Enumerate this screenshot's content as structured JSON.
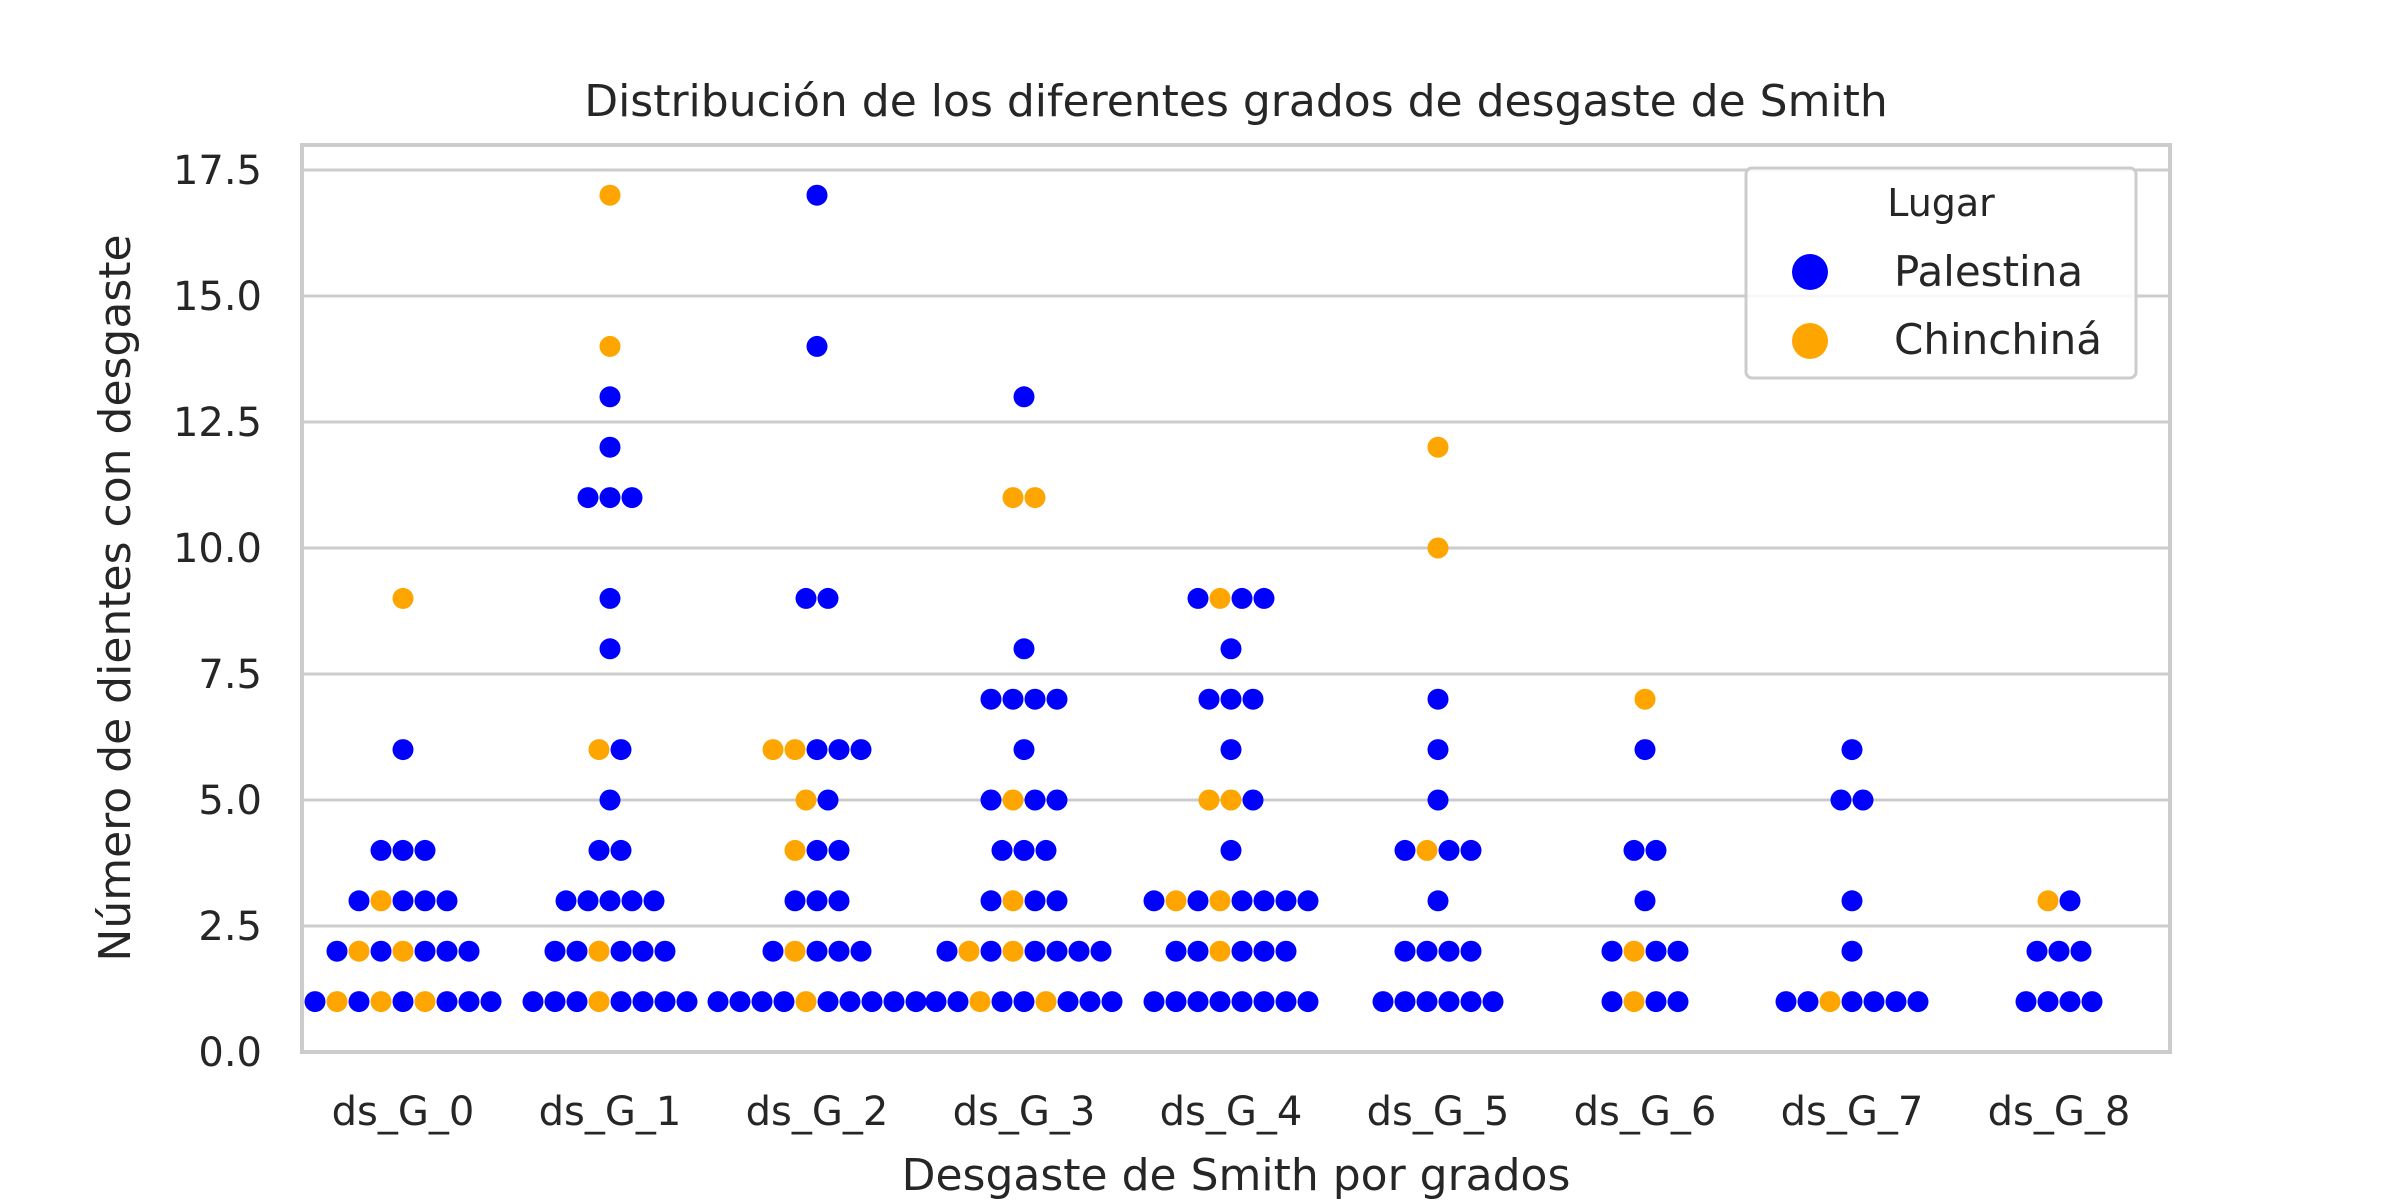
{
  "chart_data": {
    "type": "scatter",
    "subtype": "swarm",
    "title": "Distribución de los diferentes grados de desgaste de Smith",
    "xlabel": "Desgaste de Smith por grados",
    "ylabel": "Número de dientes con desgaste",
    "categories": [
      "ds_G_0",
      "ds_G_1",
      "ds_G_2",
      "ds_G_3",
      "ds_G_4",
      "ds_G_5",
      "ds_G_6",
      "ds_G_7",
      "ds_G_8"
    ],
    "ylim": [
      0,
      17.5
    ],
    "yticks": [
      0.0,
      2.5,
      5.0,
      7.5,
      10.0,
      12.5,
      15.0,
      17.5
    ],
    "ytick_labels": [
      "0.0",
      "2.5",
      "5.0",
      "7.5",
      "10.0",
      "12.5",
      "15.0",
      "17.5"
    ],
    "grid": true,
    "legend": {
      "title": "Lugar",
      "placement": "top-right",
      "entries": [
        {
          "name": "Palestina",
          "color": "#0000ff"
        },
        {
          "name": "Chinchiná",
          "color": "#ffa500"
        }
      ]
    },
    "series": [
      {
        "name": "Palestina",
        "color": "#0000ff",
        "values": [
          [
            1,
            1,
            1,
            1,
            1,
            1,
            2,
            2,
            2,
            2,
            2,
            3,
            3,
            3,
            3,
            4,
            4,
            4,
            6
          ],
          [
            1,
            1,
            1,
            1,
            1,
            1,
            1,
            2,
            2,
            2,
            2,
            2,
            3,
            3,
            3,
            3,
            3,
            4,
            4,
            5,
            6,
            8,
            9,
            11,
            11,
            11,
            12,
            13
          ],
          [
            1,
            1,
            1,
            1,
            1,
            1,
            1,
            1,
            1,
            2,
            2,
            2,
            2,
            3,
            3,
            3,
            4,
            4,
            5,
            6,
            6,
            6,
            9,
            9,
            14,
            17
          ],
          [
            1,
            1,
            1,
            1,
            1,
            1,
            1,
            2,
            2,
            2,
            2,
            2,
            2,
            3,
            3,
            3,
            4,
            4,
            4,
            5,
            5,
            5,
            6,
            7,
            7,
            7,
            7,
            8,
            13
          ],
          [
            1,
            1,
            1,
            1,
            1,
            1,
            1,
            1,
            2,
            2,
            2,
            2,
            2,
            3,
            3,
            3,
            3,
            3,
            3,
            4,
            5,
            6,
            7,
            7,
            7,
            8,
            9,
            9,
            9
          ],
          [
            1,
            1,
            1,
            1,
            1,
            1,
            2,
            2,
            2,
            2,
            3,
            4,
            4,
            4,
            5,
            6,
            7
          ],
          [
            1,
            1,
            1,
            2,
            2,
            2,
            3,
            4,
            4,
            6
          ],
          [
            1,
            1,
            1,
            1,
            1,
            1,
            2,
            3,
            5,
            5,
            6
          ],
          [
            1,
            1,
            1,
            1,
            2,
            2,
            2,
            3
          ]
        ]
      },
      {
        "name": "Chinchiná",
        "color": "#ffa500",
        "values": [
          [
            1,
            1,
            1,
            2,
            2,
            3,
            9
          ],
          [
            1,
            2,
            6,
            14,
            17
          ],
          [
            1,
            2,
            4,
            5,
            6,
            6
          ],
          [
            1,
            1,
            2,
            2,
            3,
            5,
            11,
            11
          ],
          [
            2,
            3,
            3,
            5,
            5,
            9
          ],
          [
            4,
            10,
            12
          ],
          [
            1,
            2,
            7
          ],
          [
            1
          ],
          [
            3
          ]
        ]
      }
    ]
  }
}
